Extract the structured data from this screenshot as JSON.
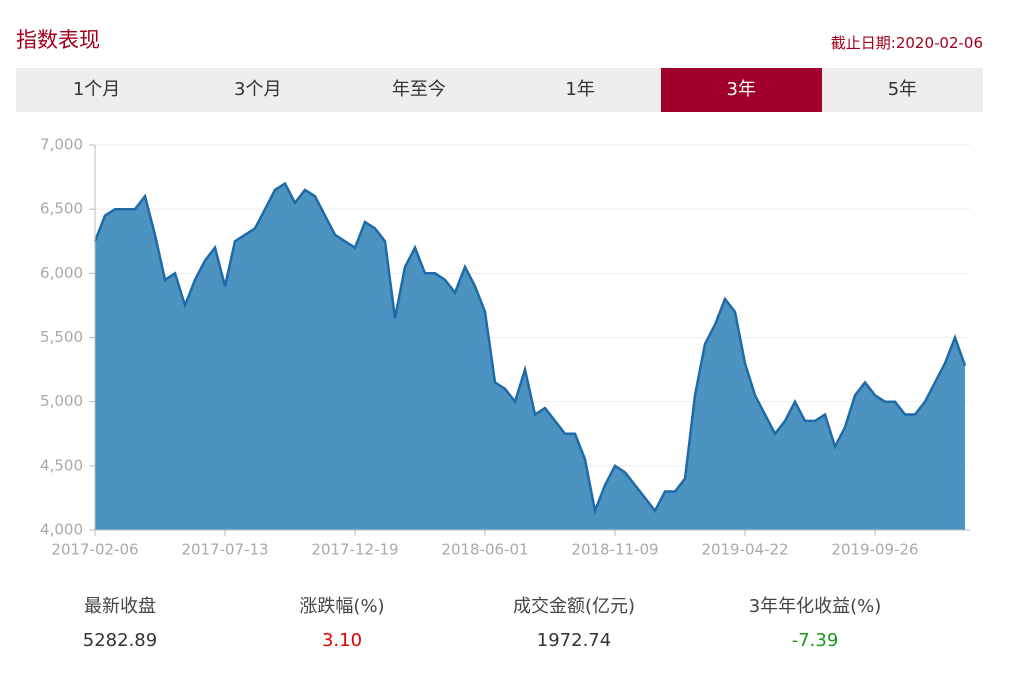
{
  "header": {
    "title": "指数表现",
    "date": "截止日期:2020-02-06"
  },
  "tabs": {
    "items": [
      "1个月",
      "3个月",
      "年至今",
      "1年",
      "3年",
      "5年"
    ],
    "active": 4
  },
  "chart_data": {
    "type": "area",
    "color": "#1f6aa8",
    "fill_color": "#4d93c2",
    "grid": true,
    "categories": [
      "2017-02-06",
      null,
      null,
      null,
      null,
      null,
      null,
      null,
      null,
      null,
      null,
      null,
      null,
      "2017-07-13",
      null,
      null,
      null,
      null,
      null,
      null,
      null,
      null,
      null,
      null,
      null,
      null,
      "2017-12-19",
      null,
      null,
      null,
      null,
      null,
      null,
      null,
      null,
      null,
      null,
      null,
      null,
      "2018-06-01",
      null,
      null,
      null,
      null,
      null,
      null,
      null,
      null,
      null,
      null,
      null,
      null,
      "2018-11-09",
      null,
      null,
      null,
      null,
      null,
      null,
      null,
      null,
      null,
      null,
      null,
      null,
      "2019-04-22",
      null,
      null,
      null,
      null,
      null,
      null,
      null,
      null,
      null,
      null,
      null,
      null,
      "2019-09-26",
      null,
      null,
      null,
      null,
      null,
      null,
      null,
      null,
      null
    ],
    "values": [
      6250,
      6450,
      6500,
      6500,
      6500,
      6600,
      6300,
      5950,
      6000,
      5750,
      5950,
      6100,
      6200,
      5900,
      6250,
      6300,
      6350,
      6500,
      6650,
      6700,
      6550,
      6650,
      6600,
      6450,
      6300,
      6250,
      6200,
      6400,
      6350,
      6250,
      5650,
      6050,
      6200,
      6000,
      6000,
      5950,
      5850,
      6050,
      5900,
      5700,
      5150,
      5100,
      5000,
      5250,
      4900,
      4950,
      4850,
      4750,
      4750,
      4550,
      4150,
      4350,
      4500,
      4450,
      4350,
      4250,
      4150,
      4300,
      4300,
      4400,
      5050,
      5450,
      5600,
      5800,
      5700,
      5300,
      5050,
      4900,
      4750,
      4850,
      5000,
      4850,
      4850,
      4900,
      4650,
      4800,
      5050,
      5150,
      5050,
      5000,
      5000,
      4900,
      4900,
      5000,
      5150,
      5300,
      5500,
      5280
    ],
    "ylim": [
      4000,
      7000
    ],
    "yticks": [
      {
        "value": 4000,
        "label": "4,000"
      },
      {
        "value": 4500,
        "label": "4,500"
      },
      {
        "value": 5000,
        "label": "5,000"
      },
      {
        "value": 5500,
        "label": "5,500"
      },
      {
        "value": 6000,
        "label": "6,000"
      },
      {
        "value": 6500,
        "label": "6,500"
      },
      {
        "value": 7000,
        "label": "7,000"
      }
    ]
  },
  "stats": [
    {
      "label": "最新收盘",
      "value": "5282.89",
      "color": "#333333"
    },
    {
      "label": "涨跌幅(%)",
      "value": "3.10",
      "color": "#e00000"
    },
    {
      "label": "成交金额(亿元)",
      "value": "1972.74",
      "color": "#333333"
    },
    {
      "label": "3年年化收益(%)",
      "value": "-7.39",
      "color": "#1a9a1a"
    }
  ]
}
